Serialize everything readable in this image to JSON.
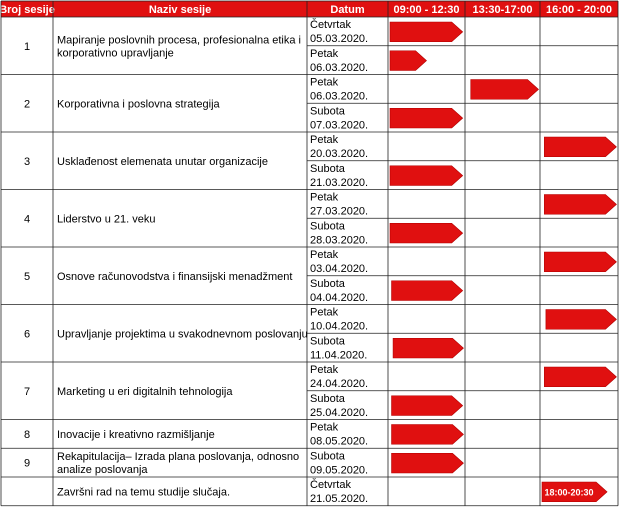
{
  "header": {
    "col_session_no": "Broj sesije",
    "col_session_name": "Naziv sesije",
    "col_date": "Datum",
    "slots": [
      "09:00 - 12:30",
      "13:30-17:00",
      "16:00 - 20:00"
    ]
  },
  "colors": {
    "accent": "#e01010",
    "border": "#222222",
    "header_text": "#ffffff"
  },
  "sessions": [
    {
      "no": "1",
      "name_lines": [
        "Mapiranje poslovnih procesa, profesionalna etika i",
        "korporativno upravljanje"
      ],
      "days": [
        {
          "weekday": "Četvrtak",
          "date": "05.03.2020.",
          "bar": {
            "start": 0,
            "end": 0.97
          }
        },
        {
          "weekday": "Petak",
          "date": "06.03.2020.",
          "bar": {
            "start": 0,
            "end": 0.5
          }
        }
      ]
    },
    {
      "no": "2",
      "name_lines": [
        "Korporativna i poslovna strategija"
      ],
      "days": [
        {
          "weekday": "Petak",
          "date": "06.03.2020.",
          "bar": {
            "start": 1.05,
            "end": 1.98
          }
        },
        {
          "weekday": "Subota",
          "date": "07.03.2020.",
          "bar": {
            "start": 0,
            "end": 0.97
          }
        }
      ]
    },
    {
      "no": "3",
      "name_lines": [
        "Usklađenost elemenata unutar organizacije"
      ],
      "days": [
        {
          "weekday": "Petak",
          "date": "20.03.2020.",
          "bar": {
            "start": 2.03,
            "end": 2.98
          }
        },
        {
          "weekday": "Subota",
          "date": "21.03.2020.",
          "bar": {
            "start": 0,
            "end": 0.97
          }
        }
      ]
    },
    {
      "no": "4",
      "name_lines": [
        "Liderstvo u 21. veku"
      ],
      "days": [
        {
          "weekday": "Petak",
          "date": "27.03.2020.",
          "bar": {
            "start": 2.03,
            "end": 2.98
          }
        },
        {
          "weekday": "Subota",
          "date": "28.03.2020.",
          "bar": {
            "start": 0,
            "end": 0.97
          }
        }
      ]
    },
    {
      "no": "5",
      "name_lines": [
        "Osnove računovodstva i finansijski menadžment"
      ],
      "days": [
        {
          "weekday": "Petak",
          "date": "03.04.2020.",
          "bar": {
            "start": 2.03,
            "end": 2.98
          }
        },
        {
          "weekday": "Subota",
          "date": "04.04.2020.",
          "bar": {
            "start": 0.02,
            "end": 0.97
          }
        }
      ]
    },
    {
      "no": "6",
      "name_lines": [
        "Upravljanje projektima u svakodnevnom poslovanju"
      ],
      "days": [
        {
          "weekday": "Petak",
          "date": "10.04.2020.",
          "bar": {
            "start": 2.05,
            "end": 2.98
          }
        },
        {
          "weekday": "Subota",
          "date": "11.04.2020.",
          "bar": {
            "start": 0.04,
            "end": 0.98
          }
        }
      ]
    },
    {
      "no": "7",
      "name_lines": [
        "Marketing u eri digitalnih tehnologija"
      ],
      "days": [
        {
          "weekday": "Petak",
          "date": "24.04.2020.",
          "bar": {
            "start": 2.03,
            "end": 2.98
          }
        },
        {
          "weekday": "Subota",
          "date": "25.04.2020.",
          "bar": {
            "start": 0.02,
            "end": 0.97
          }
        }
      ]
    },
    {
      "no": "8",
      "name_lines": [
        "Inovacije i kreativno razmišljanje"
      ],
      "days": [
        {
          "weekday": "Petak",
          "date": "08.05.2020.",
          "bar": {
            "start": 0.02,
            "end": 0.98
          }
        }
      ]
    },
    {
      "no": "9",
      "name_lines": [
        "Rekapitulacija– Izrada plana poslovanja, odnosno",
        "analize poslovanja"
      ],
      "days": [
        {
          "weekday": "Subota",
          "date": "09.05.2020.",
          "bar": {
            "start": 0.02,
            "end": 0.98
          }
        }
      ]
    },
    {
      "no": "",
      "name_lines": [
        "Završni rad na temu studije slučaja."
      ],
      "days": [
        {
          "weekday": "Četvrtak",
          "date": "21.05.2020.",
          "bar": {
            "start": 2.0,
            "end": 2.86,
            "label": "18:00-20:30"
          }
        }
      ]
    }
  ]
}
